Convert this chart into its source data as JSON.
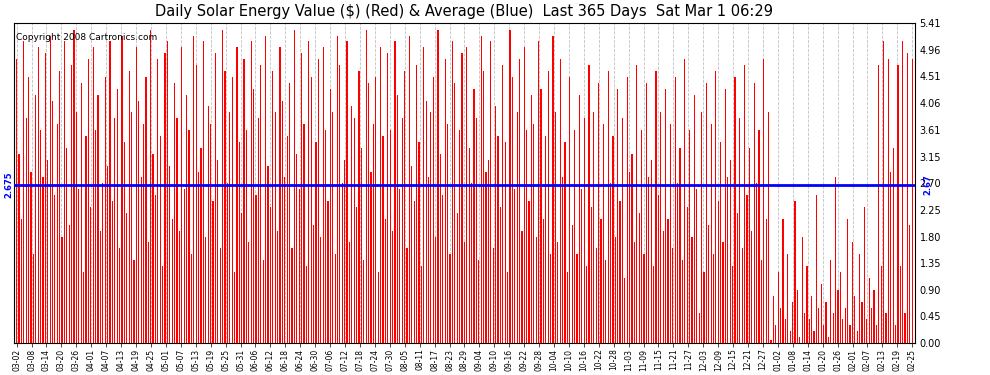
{
  "title": "Daily Solar Energy Value ($) (Red) & Average (Blue)  Last 365 Days  Sat Mar 1 06:29",
  "copyright_text": "Copyright 2008 Cartronics.com",
  "average_value": 2.675,
  "ylim": [
    0.0,
    5.41
  ],
  "yticks": [
    0.0,
    0.45,
    0.9,
    1.35,
    1.8,
    2.25,
    2.7,
    3.15,
    3.61,
    4.06,
    4.51,
    4.96,
    5.41
  ],
  "bar_color": "#FF0000",
  "avg_line_color": "#0000FF",
  "bg_color": "#FFFFFF",
  "grid_color": "#BBBBBB",
  "title_fontsize": 10.5,
  "copyright_fontsize": 6.5,
  "bar_width": 0.5,
  "bar_values": [
    4.8,
    3.2,
    2.1,
    5.1,
    3.8,
    4.5,
    2.9,
    1.5,
    4.2,
    5.0,
    3.6,
    2.8,
    4.9,
    3.1,
    5.2,
    4.1,
    2.5,
    3.7,
    4.6,
    1.8,
    5.1,
    3.3,
    2.0,
    4.7,
    5.3,
    3.9,
    2.6,
    4.4,
    1.2,
    3.5,
    4.8,
    2.3,
    5.0,
    3.6,
    4.2,
    1.9,
    2.7,
    4.5,
    3.0,
    5.1,
    2.4,
    3.8,
    4.3,
    1.6,
    5.2,
    3.4,
    2.2,
    4.6,
    3.9,
    1.4,
    5.0,
    4.1,
    2.8,
    3.7,
    4.5,
    1.7,
    5.3,
    3.2,
    2.5,
    4.8,
    3.5,
    1.3,
    4.9,
    5.1,
    3.0,
    2.1,
    4.4,
    3.8,
    1.9,
    5.0,
    2.6,
    4.2,
    3.6,
    1.5,
    5.2,
    4.7,
    2.9,
    3.3,
    5.1,
    1.8,
    4.0,
    3.7,
    2.4,
    4.9,
    3.1,
    1.6,
    5.3,
    4.6,
    2.7,
    3.9,
    4.5,
    1.2,
    5.0,
    3.4,
    2.2,
    4.8,
    3.6,
    1.7,
    5.1,
    4.3,
    2.5,
    3.8,
    4.7,
    1.4,
    5.2,
    3.0,
    2.3,
    4.6,
    3.9,
    1.9,
    5.0,
    4.1,
    2.8,
    3.5,
    4.4,
    1.6,
    5.3,
    3.2,
    2.6,
    4.9,
    3.7,
    1.3,
    5.1,
    4.5,
    2.0,
    3.4,
    4.8,
    1.8,
    5.0,
    3.6,
    2.4,
    4.3,
    3.9,
    1.5,
    5.2,
    4.7,
    2.7,
    3.1,
    5.1,
    1.7,
    4.0,
    3.8,
    2.3,
    4.6,
    3.3,
    1.4,
    5.3,
    4.4,
    2.9,
    3.7,
    4.5,
    1.2,
    5.0,
    3.5,
    2.1,
    4.9,
    3.6,
    1.9,
    5.1,
    4.2,
    2.6,
    3.8,
    4.6,
    1.6,
    5.2,
    3.0,
    2.4,
    4.7,
    3.4,
    1.3,
    5.0,
    4.1,
    2.8,
    3.9,
    4.5,
    1.8,
    5.3,
    3.2,
    2.5,
    4.8,
    3.7,
    1.5,
    5.1,
    4.4,
    2.2,
    3.6,
    4.9,
    1.7,
    5.0,
    3.3,
    2.7,
    4.3,
    3.8,
    1.4,
    5.2,
    4.6,
    2.9,
    3.1,
    5.1,
    1.6,
    4.0,
    3.5,
    2.3,
    4.7,
    3.4,
    1.2,
    5.3,
    4.5,
    2.6,
    3.9,
    4.8,
    1.9,
    5.0,
    3.6,
    2.4,
    4.2,
    3.7,
    1.8,
    5.1,
    4.3,
    2.1,
    3.5,
    4.6,
    1.5,
    5.2,
    3.9,
    1.7,
    4.8,
    2.8,
    3.4,
    1.2,
    4.5,
    2.0,
    3.6,
    1.5,
    4.2,
    2.6,
    3.8,
    1.3,
    4.7,
    2.3,
    3.9,
    1.6,
    4.4,
    2.1,
    3.7,
    1.4,
    4.6,
    2.7,
    3.5,
    1.8,
    4.3,
    2.4,
    3.8,
    1.1,
    4.5,
    2.9,
    3.2,
    1.7,
    4.7,
    2.2,
    3.6,
    1.5,
    4.4,
    2.8,
    3.1,
    1.3,
    4.6,
    2.5,
    3.9,
    1.9,
    4.3,
    2.1,
    3.7,
    1.6,
    4.5,
    2.7,
    3.3,
    1.4,
    4.8,
    2.3,
    3.6,
    1.8,
    4.2,
    2.6,
    0.5,
    3.9,
    1.2,
    4.4,
    2.0,
    3.7,
    1.5,
    4.6,
    2.4,
    3.4,
    1.7,
    4.3,
    2.8,
    3.1,
    1.3,
    4.5,
    2.2,
    3.8,
    1.6,
    4.7,
    2.5,
    3.3,
    1.9,
    4.4,
    2.7,
    3.6,
    1.4,
    4.8,
    2.1,
    3.9,
    0.05,
    0.8,
    0.3,
    1.2,
    0.6,
    2.1,
    0.4,
    1.5,
    0.2,
    0.7,
    2.4,
    0.9,
    0.1,
    1.8,
    0.5,
    1.3,
    0.4,
    0.8,
    0.2,
    2.5,
    0.6,
    1.0,
    0.3,
    0.7,
    0.1,
    1.4,
    0.5,
    2.8,
    0.9,
    1.2,
    0.4,
    0.6,
    2.1,
    0.3,
    1.7,
    0.8,
    0.2,
    1.5,
    0.7,
    2.3,
    0.4,
    1.1,
    0.6,
    0.9,
    0.3,
    4.7,
    1.3,
    5.1,
    0.5,
    4.8,
    2.9,
    3.3,
    0.3,
    4.7,
    1.3,
    5.1,
    0.5,
    4.9,
    2.0,
    4.8
  ],
  "x_tick_labels": [
    "03-02",
    "03-08",
    "03-14",
    "03-20",
    "03-26",
    "04-01",
    "04-07",
    "04-13",
    "04-19",
    "04-25",
    "05-01",
    "05-07",
    "05-13",
    "05-19",
    "05-25",
    "05-31",
    "06-06",
    "06-12",
    "06-18",
    "06-24",
    "06-30",
    "07-06",
    "07-12",
    "07-18",
    "07-24",
    "07-30",
    "08-05",
    "08-11",
    "08-17",
    "08-23",
    "08-29",
    "09-04",
    "09-10",
    "09-16",
    "09-22",
    "09-28",
    "10-04",
    "10-10",
    "10-16",
    "10-22",
    "10-28",
    "11-03",
    "11-09",
    "11-15",
    "11-21",
    "11-27",
    "12-03",
    "12-09",
    "12-15",
    "12-21",
    "12-27",
    "01-02",
    "01-08",
    "01-14",
    "01-20",
    "01-26",
    "02-01",
    "02-07",
    "02-13",
    "02-19",
    "02-25"
  ]
}
